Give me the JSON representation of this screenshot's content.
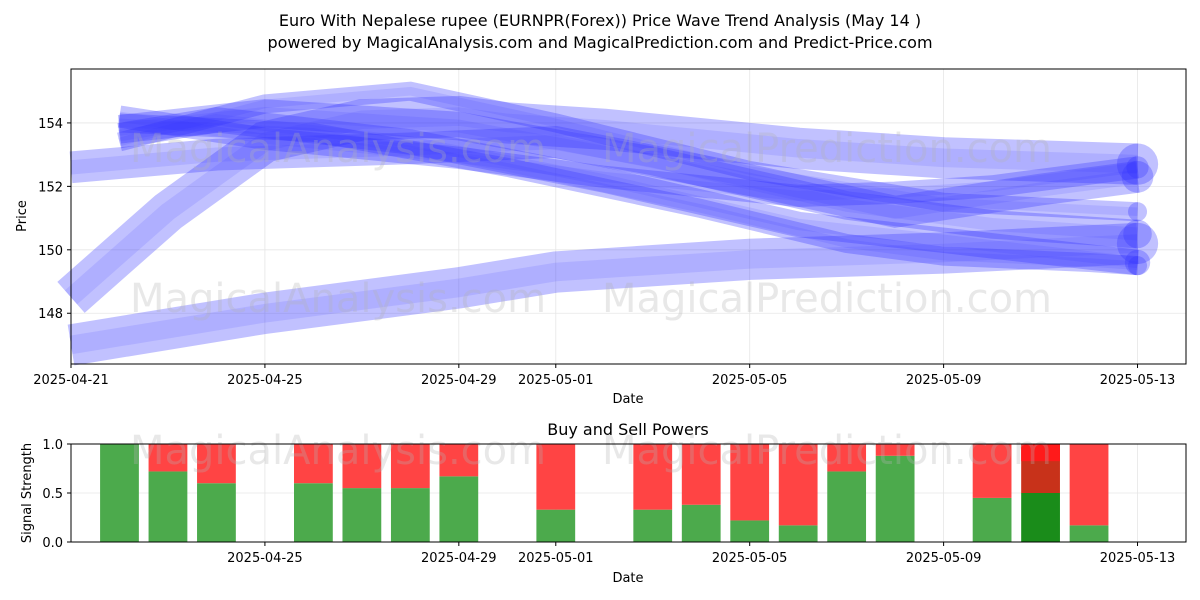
{
  "title_line1": "Euro With Nepalese rupee (EURNPR(Forex)) Price Wave Trend Analysis (May 14 )",
  "title_line2": "powered by MagicalAnalysis.com and MagicalPrediction.com and Predict-Price.com",
  "watermarks": [
    "MagicalAnalysis.com",
    "MagicalPrediction.com"
  ],
  "colors": {
    "wave": "#3333ff",
    "buy": "#4caa4c",
    "sell": "#ff4444",
    "buy_strong": "#1a8c1a",
    "sell_strong": "#ff1a1a"
  },
  "chart_data": [
    {
      "type": "area",
      "title": "",
      "xlabel": "Date",
      "ylabel": "Price",
      "xlim": [
        "2025-04-21",
        "2025-05-14"
      ],
      "ylim": [
        146.4,
        155.7
      ],
      "x_ticks": [
        "2025-04-21",
        "2025-04-25",
        "2025-04-29",
        "2025-05-01",
        "2025-05-05",
        "2025-05-09",
        "2025-05-13"
      ],
      "y_ticks": [
        148,
        150,
        152,
        154
      ],
      "series": [
        {
          "x": [
            "2025-04-21",
            "2025-04-23",
            "2025-04-25",
            "2025-04-27",
            "2025-04-29",
            "2025-04-30",
            "2025-05-02",
            "2025-05-04",
            "2025-05-06",
            "2025-05-09",
            "2025-05-13"
          ],
          "values": [
            148.5,
            151.2,
            153.4,
            154.1,
            154.2,
            154.0,
            153.8,
            153.5,
            153.2,
            152.9,
            152.7
          ],
          "band": 1.3
        },
        {
          "x": [
            "2025-04-21",
            "2025-04-25",
            "2025-04-29",
            "2025-05-01",
            "2025-05-05",
            "2025-05-09",
            "2025-05-13"
          ],
          "values": [
            147.0,
            148.0,
            148.8,
            149.3,
            149.7,
            149.9,
            150.2
          ],
          "band": 1.3
        },
        {
          "x": [
            "2025-04-22",
            "2025-04-25",
            "2025-04-29",
            "2025-05-03",
            "2025-05-07",
            "2025-05-10",
            "2025-05-13"
          ],
          "values": [
            153.8,
            154.3,
            153.9,
            152.8,
            151.4,
            150.8,
            150.5
          ],
          "band": 0.9
        },
        {
          "x": [
            "2025-04-22",
            "2025-04-24",
            "2025-04-28",
            "2025-05-02",
            "2025-05-06",
            "2025-05-09",
            "2025-05-13"
          ],
          "values": [
            153.6,
            154.1,
            153.4,
            152.2,
            150.8,
            150.3,
            149.6
          ],
          "band": 0.8
        },
        {
          "x": [
            "2025-04-22",
            "2025-04-25",
            "2025-04-28",
            "2025-05-01",
            "2025-05-05",
            "2025-05-09",
            "2025-05-13"
          ],
          "values": [
            153.4,
            154.6,
            155.0,
            154.0,
            152.5,
            151.5,
            151.2
          ],
          "band": 0.6
        },
        {
          "x": [
            "2025-04-22",
            "2025-04-25",
            "2025-04-29",
            "2025-05-02",
            "2025-05-06",
            "2025-05-08",
            "2025-05-10",
            "2025-05-13"
          ],
          "values": [
            154.2,
            153.5,
            152.9,
            152.3,
            151.7,
            151.8,
            152.0,
            152.6
          ],
          "band": 0.7
        },
        {
          "x": [
            "2025-04-22",
            "2025-04-26",
            "2025-04-30",
            "2025-05-04",
            "2025-05-07",
            "2025-05-09",
            "2025-05-12",
            "2025-05-13"
          ],
          "values": [
            154.0,
            153.7,
            152.6,
            151.3,
            150.2,
            149.8,
            149.6,
            149.5
          ],
          "band": 0.6
        },
        {
          "x": [
            "2025-04-21",
            "2025-04-24",
            "2025-04-28",
            "2025-05-01",
            "2025-05-05",
            "2025-05-08",
            "2025-05-11",
            "2025-05-13"
          ],
          "values": [
            152.6,
            153.0,
            153.2,
            153.4,
            152.2,
            151.2,
            151.9,
            152.3
          ],
          "band": 1.0
        }
      ]
    },
    {
      "type": "bar",
      "title": "Buy and Sell Powers",
      "xlabel": "Date",
      "ylabel": "Signal Strength",
      "xlim": [
        "2025-04-21",
        "2025-05-14"
      ],
      "ylim": [
        0,
        1
      ],
      "x_ticks": [
        "2025-04-25",
        "2025-04-29",
        "2025-05-01",
        "2025-05-05",
        "2025-05-09",
        "2025-05-13"
      ],
      "y_ticks": [
        "0.0",
        "0.5",
        "1.0"
      ],
      "categories": [
        "2025-04-22",
        "2025-04-23",
        "2025-04-24",
        "2025-04-26",
        "2025-04-27",
        "2025-04-28",
        "2025-04-29",
        "2025-05-01",
        "2025-05-03",
        "2025-05-04",
        "2025-05-05",
        "2025-05-06",
        "2025-05-07",
        "2025-05-08",
        "2025-05-10",
        "2025-05-11",
        "2025-05-12"
      ],
      "series": [
        {
          "name": "buy",
          "values": [
            1.0,
            0.72,
            0.6,
            0.6,
            0.55,
            0.55,
            0.67,
            0.33,
            0.33,
            0.38,
            0.22,
            0.17,
            0.72,
            0.88,
            0.45,
            0.5,
            0.17
          ]
        },
        {
          "name": "sell",
          "values": [
            0.0,
            0.28,
            0.4,
            0.4,
            0.45,
            0.45,
            0.33,
            0.67,
            0.67,
            0.62,
            0.78,
            0.83,
            0.28,
            0.12,
            0.55,
            0.5,
            0.83
          ]
        }
      ],
      "highlight_index": 15
    }
  ]
}
